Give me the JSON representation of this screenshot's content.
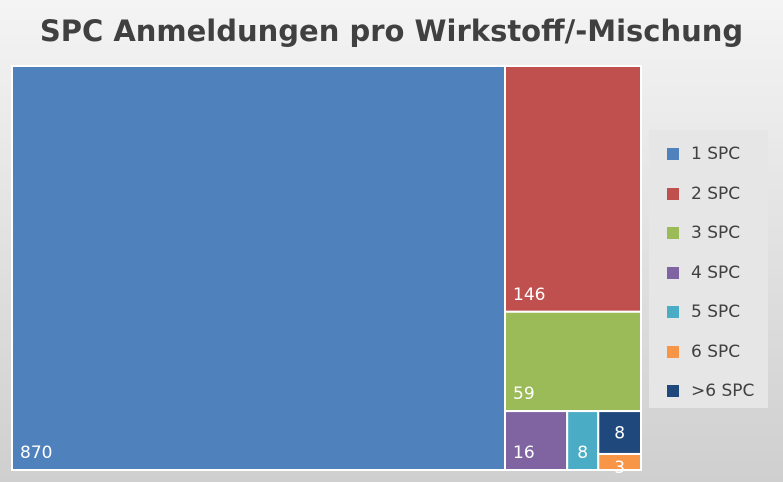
{
  "chart_data": {
    "type": "treemap",
    "title": "SPC Anmeldungen pro Wirkstoff/-Mischung",
    "legend_position": "right",
    "items": [
      {
        "name": "1 SPC",
        "value": 870,
        "color": "#4F81BD"
      },
      {
        "name": "2 SPC",
        "value": 146,
        "color": "#C0504D"
      },
      {
        "name": "3 SPC",
        "value": 59,
        "color": "#9BBB59"
      },
      {
        "name": "4 SPC",
        "value": 16,
        "color": "#8064A2"
      },
      {
        "name": "5 SPC",
        "value": 8,
        "color": "#4BACC6"
      },
      {
        "name": "6 SPC",
        "value": 3,
        "color": "#F79646"
      },
      {
        "name": ">6 SPC",
        "value": 8,
        "color": "#1F497D"
      }
    ]
  }
}
